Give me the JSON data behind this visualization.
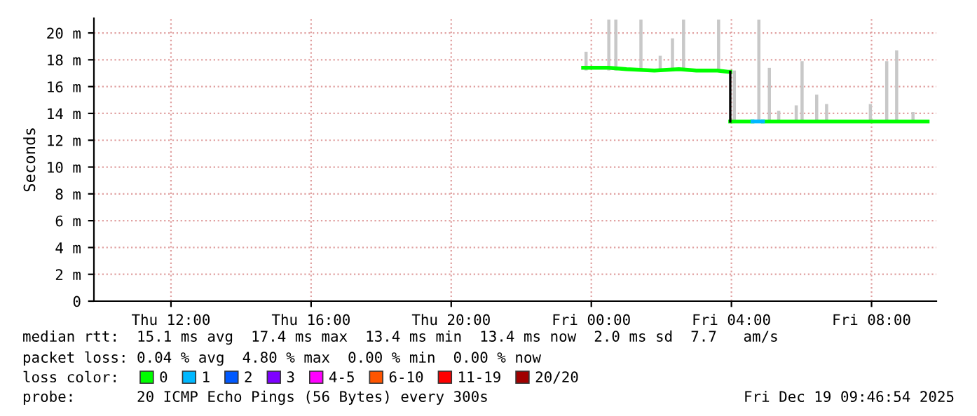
{
  "chart_data": {
    "type": "line",
    "ylabel": "Seconds",
    "legend_title": "loss color:",
    "xlim": [
      "2025-12-18T09:48",
      "2025-12-19T09:51"
    ],
    "ylim": [
      0,
      21.1
    ],
    "xticks": [
      {
        "value": "2025-12-18T12:00",
        "label": "Thu 12:00"
      },
      {
        "value": "2025-12-18T16:00",
        "label": "Thu 16:00"
      },
      {
        "value": "2025-12-18T20:00",
        "label": "Thu 20:00"
      },
      {
        "value": "2025-12-19T00:00",
        "label": "Fri 00:00"
      },
      {
        "value": "2025-12-19T04:00",
        "label": "Fri 04:00"
      },
      {
        "value": "2025-12-19T08:00",
        "label": "Fri 08:00"
      }
    ],
    "yticks": [
      0,
      {
        "value": 2,
        "label": "2 m"
      },
      {
        "value": 4,
        "label": "4 m"
      },
      {
        "value": 6,
        "label": "6 m"
      },
      {
        "value": 8,
        "label": "8 m"
      },
      {
        "value": 10,
        "label": "10 m"
      },
      {
        "value": 12,
        "label": "12 m"
      },
      {
        "value": 14,
        "label": "14 m"
      },
      {
        "value": 16,
        "label": "16 m"
      },
      {
        "value": 18,
        "label": "18 m"
      },
      {
        "value": 20,
        "label": "20 m"
      }
    ],
    "grid": true,
    "legend": "bottom",
    "series": [
      {
        "type": "bar",
        "color": "#c8c8c8",
        "x": [
          "2025-12-18T23:51",
          "2025-12-19T00:30",
          "2025-12-19T00:42",
          "2025-12-19T01:25",
          "2025-12-19T01:58",
          "2025-12-19T02:19",
          "2025-12-19T02:38",
          "2025-12-19T03:38",
          "2025-12-19T04:05",
          "2025-12-19T04:47",
          "2025-12-19T05:05",
          "2025-12-19T05:21",
          "2025-12-19T05:51",
          "2025-12-19T06:01",
          "2025-12-19T06:26",
          "2025-12-19T06:43",
          "2025-12-19T07:58",
          "2025-12-19T08:26",
          "2025-12-19T08:43",
          "2025-12-19T09:11"
        ],
        "base": [
          17.2,
          17.2,
          17.2,
          17.2,
          17.2,
          17.2,
          17.2,
          17.2,
          13.3,
          13.3,
          13.3,
          13.3,
          13.3,
          13.3,
          13.3,
          13.3,
          13.3,
          13.3,
          13.3,
          13.3
        ],
        "values": [
          1.4,
          3.8,
          3.8,
          3.8,
          1.1,
          2.4,
          3.8,
          3.8,
          3.9,
          7.7,
          4.1,
          0.9,
          1.3,
          4.6,
          2.1,
          1.4,
          1.4,
          4.6,
          5.4,
          0.8
        ]
      },
      {
        "name": "0",
        "color": "#00ff00",
        "x": [
          "2025-12-18T23:46",
          "2025-12-19T00:30",
          "2025-12-19T01:00",
          "2025-12-19T01:48",
          "2025-12-19T02:30",
          "2025-12-19T03:00",
          "2025-12-19T03:36",
          "2025-12-19T03:54",
          "2025-12-19T03:58",
          null,
          "2025-12-19T03:58",
          "2025-12-19T04:36",
          null,
          "2025-12-19T04:54",
          "2025-12-19T09:36"
        ],
        "values": [
          17.4,
          17.4,
          17.3,
          17.2,
          17.3,
          17.2,
          17.2,
          17.1,
          17.1,
          null,
          13.4,
          13.4,
          null,
          13.4,
          13.4
        ]
      },
      {
        "color": "#000000",
        "x": [
          "2025-12-19T03:58",
          "2025-12-19T03:58"
        ],
        "values": [
          17.1,
          13.4
        ]
      },
      {
        "name": "1",
        "color": "#00b8ff",
        "x": [
          "2025-12-19T04:36",
          "2025-12-19T04:54"
        ],
        "values": [
          13.4,
          13.4
        ]
      },
      {
        "name": "2",
        "color": "#0059ff"
      },
      {
        "name": "3",
        "color": "#7e00ff"
      },
      {
        "name": "4-5",
        "color": "#ff00ff"
      },
      {
        "name": "6-10",
        "color": "#ff5500"
      },
      {
        "name": "11-19",
        "color": "#ff0000"
      },
      {
        "name": "20/20",
        "color": "#a10000"
      }
    ],
    "annotations": [
      "median rtt:  15.1 ms avg  17.4 ms max  13.4 ms min  13.4 ms now  2.0 ms sd  7.7   am/s",
      "packet loss: 0.04 % avg  4.80 % max  0.00 % min  0.00 % now",
      "probe:       20 ICMP Echo Pings (56 Bytes) every 300s",
      "Fri Dec 19 09:46:54 2025"
    ]
  }
}
